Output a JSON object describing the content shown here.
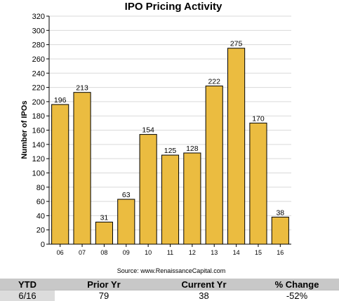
{
  "chart_data": {
    "type": "bar",
    "title": "IPO Pricing Activity",
    "ylabel": "Number of IPOs",
    "xlabel": "",
    "categories": [
      "06",
      "07",
      "08",
      "09",
      "10",
      "11",
      "12",
      "13",
      "14",
      "15",
      "16"
    ],
    "values": [
      196,
      213,
      31,
      63,
      154,
      125,
      128,
      222,
      275,
      170,
      38
    ],
    "ylim": [
      0,
      320
    ],
    "yticks": [
      0,
      20,
      40,
      60,
      80,
      100,
      120,
      140,
      160,
      180,
      200,
      220,
      240,
      260,
      280,
      300,
      320
    ],
    "grid": true,
    "bar_color": "#ebbc40",
    "source": "Source: www.RenaissanceCapital.com"
  },
  "ytd_table": {
    "headers": [
      "YTD",
      "Prior Yr",
      "Current Yr",
      "% Change"
    ],
    "row": [
      "6/16",
      "79",
      "38",
      "-52%"
    ]
  }
}
